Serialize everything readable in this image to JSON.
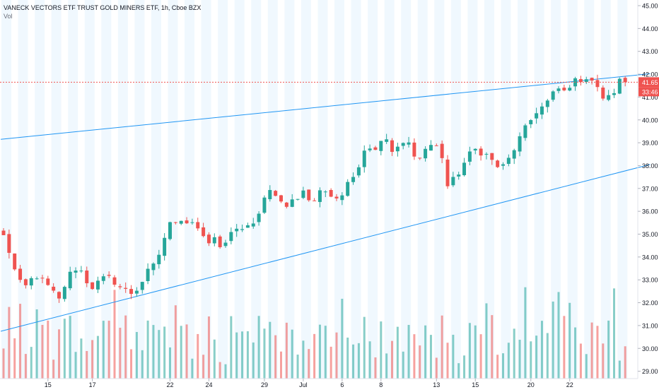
{
  "legend": {
    "symbol": "VANECK VECTORS ETF TRUST GOLD MINERS ETF, 1h, Cboe BZX",
    "volume_label": "Vol"
  },
  "chart_data": {
    "type": "candlestick",
    "title": "VANECK VECTORS ETF TRUST GOLD MINERS ETF, 1h, Cboe BZX",
    "ylim": [
      28.5,
      45.3
    ],
    "y_ticks": [
      "45.00",
      "44.00",
      "43.00",
      "42.00",
      "41.00",
      "40.00",
      "39.00",
      "38.00",
      "37.00",
      "36.00",
      "35.00",
      "34.00",
      "33.00",
      "32.00",
      "31.00",
      "30.00",
      "29.00"
    ],
    "x_ticks": [
      "15",
      "17",
      "22",
      "24",
      "29",
      "Jul",
      "6",
      "8",
      "13",
      "15",
      "20",
      "22"
    ],
    "x_tick_bars": [
      8,
      16,
      30,
      37,
      47,
      54,
      61,
      68,
      78,
      85,
      95,
      102
    ],
    "last_price": "41.65",
    "countdown": "33:46",
    "colors": {
      "up": "#26a69a",
      "down": "#ef5350",
      "trendline": "#2196f3",
      "price_line": "#ef5350"
    },
    "trendlines": [
      {
        "from": [
          -0.5,
          39.15
        ],
        "to": [
          116.5,
          42.02
        ]
      },
      {
        "from": [
          -0.5,
          30.75
        ],
        "to": [
          116.5,
          38.05
        ]
      }
    ],
    "price_path": [
      34.9,
      34.1,
      33.0,
      32.6,
      33.0,
      33.2,
      32.8,
      32.6,
      32.0,
      32.8,
      33.4,
      33.6,
      33.0,
      32.7,
      32.9,
      33.1,
      33.0,
      32.7,
      32.5,
      32.4,
      32.8,
      33.3,
      33.6,
      34.3,
      35.3,
      35.6,
      35.7,
      35.5,
      35.6,
      34.8,
      34.6,
      34.8,
      34.4,
      34.9,
      35.1,
      35.3,
      35.4,
      35.3,
      36.7,
      36.9,
      36.8,
      36.1,
      36.4,
      36.6,
      37.0,
      36.3,
      36.7,
      36.9,
      36.8,
      36.6,
      37.0,
      37.6,
      38.0,
      38.9,
      38.7,
      38.9,
      39.2,
      38.5,
      38.8,
      39.1,
      38.6,
      38.3,
      38.9,
      38.9,
      38.7,
      37.1,
      37.4,
      37.9,
      38.4,
      38.7,
      38.6,
      38.4,
      38.0,
      37.9,
      38.3,
      38.9,
      39.4,
      39.9,
      40.4,
      40.6,
      40.9,
      41.4,
      41.2,
      41.6,
      41.7,
      41.9,
      41.8,
      41.3,
      40.9,
      41.0,
      41.7,
      41.65
    ],
    "volume_ylim": [
      0,
      0.7
    ]
  }
}
